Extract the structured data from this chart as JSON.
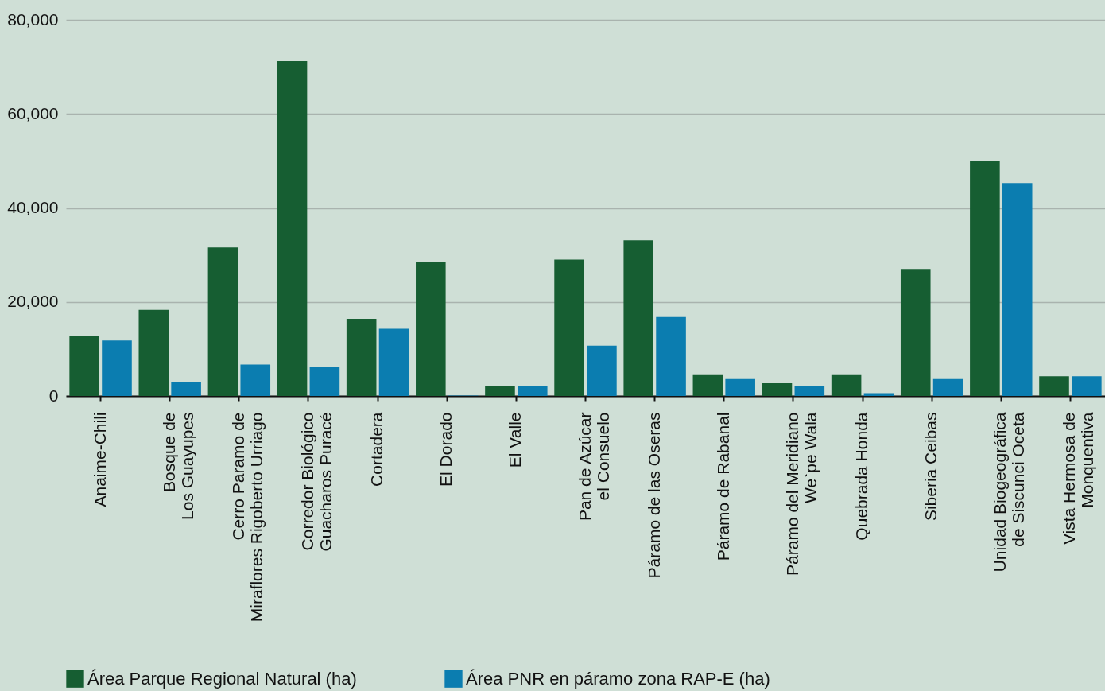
{
  "chart_data": {
    "type": "bar",
    "categories": [
      "Anaime-Chili",
      "Bosque de\nLos Guayupes",
      "Cerro Paramo de\nMiraflores Rigoberto Urriago",
      "Corredor Biológico\nGuacharos Puracé",
      "Cortadera",
      "El Dorado",
      "El Valle",
      "Pan de Azúcar\nel Consuelo",
      "Páramo de las Oseras",
      "Páramo de Rabanal",
      "Páramo del Meridiano\nWe`pe Wala",
      "Quebrada Honda",
      "Siberia Ceibas",
      "Unidad Biogeográfica\nde Siscunci Oceta",
      "Vista Hermosa de\nMonquentiva"
    ],
    "series": [
      {
        "name": "Área Parque Regional Natural (ha)",
        "color": "#165e32",
        "values": [
          12800,
          18300,
          31600,
          71200,
          16400,
          28600,
          2100,
          29000,
          33100,
          4600,
          2700,
          4600,
          27000,
          49900,
          4200
        ]
      },
      {
        "name": "Área PNR en páramo zona RAP-E (ha)",
        "color": "#0b7db0",
        "values": [
          11800,
          3000,
          6700,
          6100,
          14300,
          100,
          2100,
          10700,
          16800,
          3600,
          2100,
          600,
          3600,
          45300,
          4200
        ]
      }
    ],
    "ylim": [
      0,
      80000
    ],
    "yticks": [
      0,
      {
        "value": 20000,
        "label": "20,000"
      },
      {
        "value": 40000,
        "label": "40,000"
      },
      {
        "value": 60000,
        "label": "60,000"
      },
      {
        "value": 80000,
        "label": "80,000"
      }
    ],
    "grid": "y",
    "legend": "bottom left"
  }
}
